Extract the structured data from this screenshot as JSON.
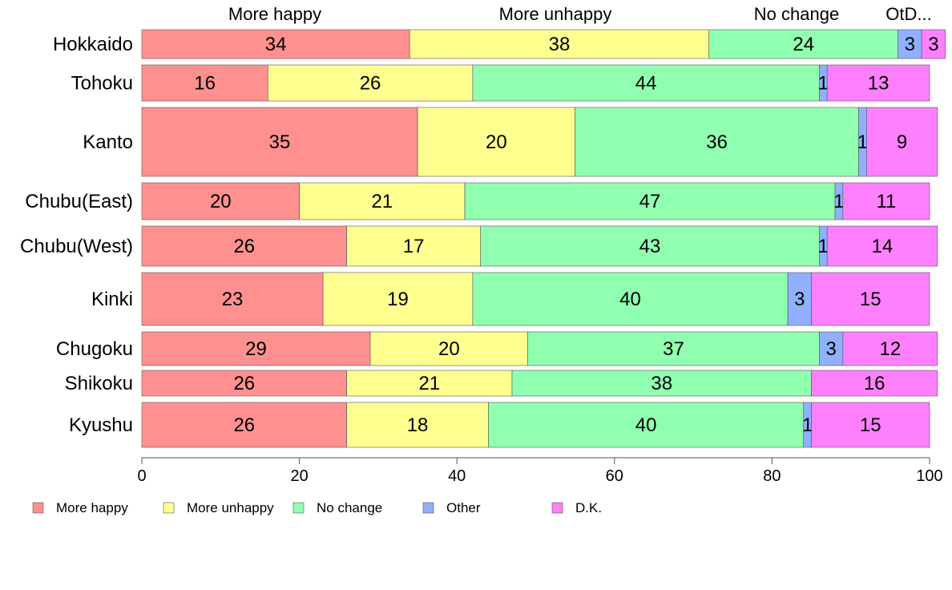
{
  "chart_data": {
    "type": "bar",
    "orientation": "horizontal",
    "stacked": true,
    "categories": [
      "Hokkaido",
      "Tohoku",
      "Kanto",
      "Chubu(East)",
      "Chubu(West)",
      "Kinki",
      "Chugoku",
      "Shikoku",
      "Kyushu"
    ],
    "series": [
      {
        "name": "More happy",
        "color": "#ff9090",
        "values": [
          34,
          16,
          35,
          20,
          26,
          23,
          29,
          26,
          26
        ]
      },
      {
        "name": "More unhappy",
        "color": "#ffff90",
        "values": [
          38,
          26,
          20,
          21,
          17,
          19,
          20,
          21,
          18
        ]
      },
      {
        "name": "No change",
        "color": "#90ffb0",
        "values": [
          24,
          44,
          36,
          47,
          43,
          40,
          37,
          38,
          40
        ]
      },
      {
        "name": "Other",
        "color": "#90b0ff",
        "values": [
          3,
          1,
          1,
          1,
          1,
          3,
          3,
          0,
          1
        ]
      },
      {
        "name": "D.K.",
        "color": "#ff80ff",
        "values": [
          3,
          13,
          9,
          11,
          14,
          15,
          12,
          16,
          15
        ]
      }
    ],
    "column_headers": [
      "More happy",
      "More unhappy",
      "No change",
      "OtD..."
    ],
    "xlim": [
      0,
      100
    ],
    "xticks": [
      "0",
      "20",
      "40",
      "60",
      "80",
      "100"
    ],
    "grid": false,
    "legend": "bottom"
  }
}
